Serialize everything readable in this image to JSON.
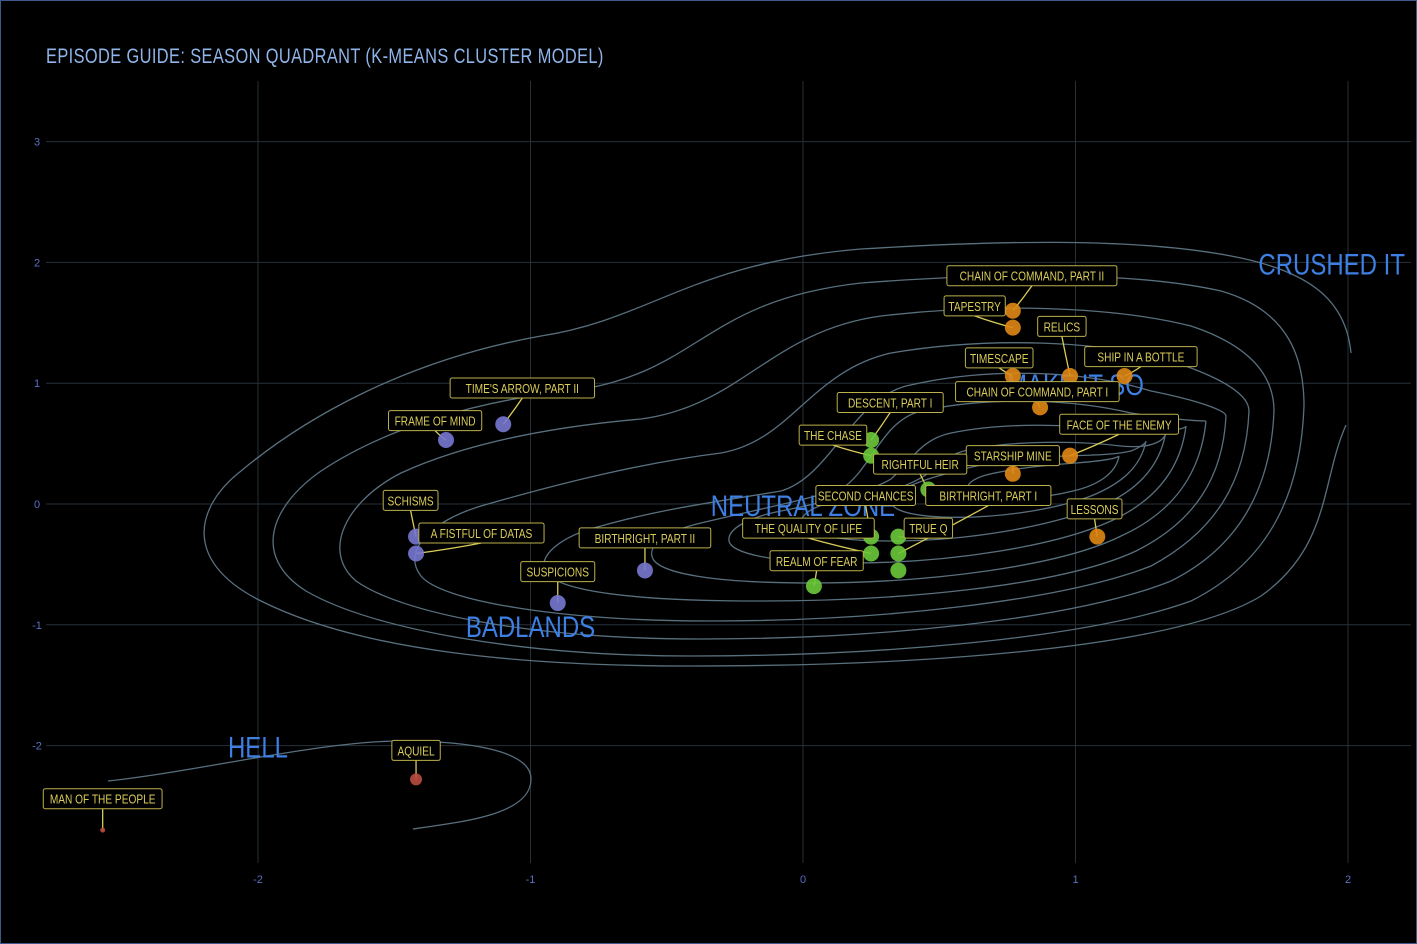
{
  "chart_data": {
    "type": "scatter",
    "title": "EPISODE GUIDE: SEASON QUADRANT (K-MEANS CLUSTER MODEL)",
    "xlabel": "",
    "ylabel": "",
    "xlim": [
      -2.8,
      2.25
    ],
    "ylim": [
      -2.95,
      3.5
    ],
    "x_ticks": [
      -2,
      -1,
      0,
      1,
      2
    ],
    "y_ticks": [
      -2,
      -1,
      0,
      1,
      2,
      3
    ],
    "grid": true,
    "regions": [
      {
        "name": "CRUSHED IT",
        "x": 2.0,
        "y": 2.0
      },
      {
        "name": "MAKE IT SO",
        "x": 1.0,
        "y": 1.0
      },
      {
        "name": "NEUTRAL ZONE",
        "x": 0.0,
        "y": 0.0
      },
      {
        "name": "BADLANDS",
        "x": -1.0,
        "y": -1.0
      },
      {
        "name": "HELL",
        "x": -2.0,
        "y": -2.0
      }
    ],
    "colors": {
      "crushed": "#e08714",
      "neutral": "#6cc93a",
      "badlands": "#7878d2",
      "hell": "#b94c41",
      "label_text": "#d9cc59",
      "contour": "#58707e"
    },
    "points": [
      {
        "name": "CHAIN OF COMMAND, PART II",
        "x": 0.77,
        "y": 1.6,
        "cluster": "crushed",
        "lx": 0.84,
        "ly": 1.89
      },
      {
        "name": "TAPESTRY",
        "x": 0.77,
        "y": 1.46,
        "cluster": "crushed",
        "lx": 0.63,
        "ly": 1.64
      },
      {
        "name": "RELICS",
        "x": 0.98,
        "y": 1.06,
        "cluster": "crushed",
        "lx": 0.95,
        "ly": 1.47
      },
      {
        "name": "TIMESCAPE",
        "x": 0.77,
        "y": 1.06,
        "cluster": "crushed",
        "lx": 0.72,
        "ly": 1.21
      },
      {
        "name": "SHIP IN A BOTTLE",
        "x": 1.18,
        "y": 1.06,
        "cluster": "crushed",
        "lx": 1.24,
        "ly": 1.22
      },
      {
        "name": "CHAIN OF COMMAND, PART I",
        "x": 0.87,
        "y": 0.8,
        "cluster": "crushed",
        "lx": 0.86,
        "ly": 0.93
      },
      {
        "name": "FACE OF THE ENEMY",
        "x": 0.98,
        "y": 0.4,
        "cluster": "crushed",
        "lx": 1.16,
        "ly": 0.66
      },
      {
        "name": "STARSHIP MINE",
        "x": 0.77,
        "y": 0.25,
        "cluster": "crushed",
        "lx": 0.77,
        "ly": 0.4
      },
      {
        "name": "LESSONS",
        "x": 1.08,
        "y": -0.27,
        "cluster": "crushed",
        "lx": 1.07,
        "ly": -0.04
      },
      {
        "name": "DESCENT, PART I",
        "x": 0.25,
        "y": 0.53,
        "cluster": "neutral",
        "lx": 0.32,
        "ly": 0.84
      },
      {
        "name": "THE CHASE",
        "x": 0.25,
        "y": 0.4,
        "cluster": "neutral",
        "lx": 0.11,
        "ly": 0.57
      },
      {
        "name": "RIGHTFUL HEIR",
        "x": 0.46,
        "y": 0.12,
        "cluster": "neutral",
        "lx": 0.43,
        "ly": 0.33
      },
      {
        "name": "SECOND CHANCES",
        "x": 0.25,
        "y": -0.27,
        "cluster": "neutral",
        "lx": 0.23,
        "ly": 0.07
      },
      {
        "name": "BIRTHRIGHT, PART I",
        "x": 0.35,
        "y": -0.41,
        "cluster": "neutral",
        "lx": 0.68,
        "ly": 0.07
      },
      {
        "name": "THE QUALITY OF LIFE",
        "x": 0.25,
        "y": -0.41,
        "cluster": "neutral",
        "lx": 0.02,
        "ly": -0.2
      },
      {
        "name": "TRUE Q",
        "x": 0.35,
        "y": -0.27,
        "cluster": "neutral",
        "lx": 0.46,
        "ly": -0.2
      },
      {
        "name": "REALM OF FEAR",
        "x": 0.04,
        "y": -0.68,
        "cluster": "neutral",
        "lx": 0.05,
        "ly": -0.47
      },
      {
        "name": "",
        "x": 0.35,
        "y": -0.55,
        "cluster": "neutral"
      },
      {
        "name": "TIME'S ARROW, PART II",
        "x": -1.1,
        "y": 0.66,
        "cluster": "badlands",
        "lx": -1.03,
        "ly": 0.96
      },
      {
        "name": "FRAME OF MIND",
        "x": -1.31,
        "y": 0.53,
        "cluster": "badlands",
        "lx": -1.35,
        "ly": 0.69
      },
      {
        "name": "SCHISMS",
        "x": -1.42,
        "y": -0.27,
        "cluster": "badlands",
        "lx": -1.44,
        "ly": 0.03
      },
      {
        "name": "A FISTFUL OF DATAS",
        "x": -1.42,
        "y": -0.41,
        "cluster": "badlands",
        "lx": -1.18,
        "ly": -0.24
      },
      {
        "name": "BIRTHRIGHT, PART II",
        "x": -0.58,
        "y": -0.55,
        "cluster": "badlands",
        "lx": -0.58,
        "ly": -0.28
      },
      {
        "name": "SUSPICIONS",
        "x": -0.9,
        "y": -0.82,
        "cluster": "badlands",
        "lx": -0.9,
        "ly": -0.56
      },
      {
        "name": "AQUIEL",
        "x": -1.42,
        "y": -2.28,
        "cluster": "hell",
        "lx": -1.42,
        "ly": -2.04
      },
      {
        "name": "MAN OF THE PEOPLE",
        "x": -2.57,
        "y": -2.7,
        "cluster": "hell",
        "lx": -2.57,
        "ly": -2.44
      }
    ]
  }
}
